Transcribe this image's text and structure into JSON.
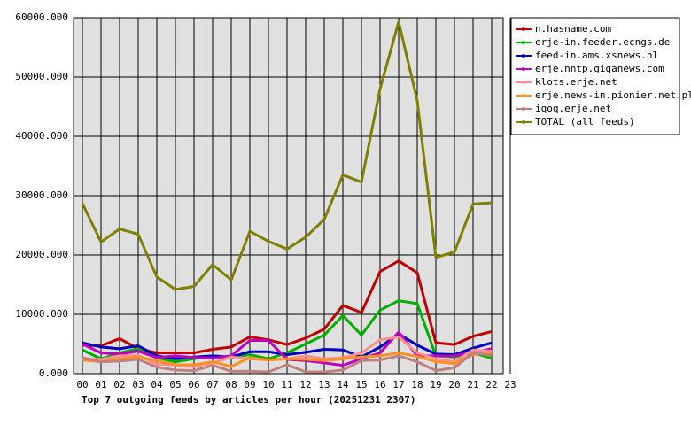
{
  "chart_data": {
    "type": "line",
    "title": "Top 7 outgoing feeds by articles per hour (20251231 2307)",
    "categories": [
      "00",
      "01",
      "02",
      "03",
      "04",
      "05",
      "06",
      "07",
      "08",
      "09",
      "10",
      "11",
      "12",
      "13",
      "14",
      "15",
      "16",
      "17",
      "18",
      "19",
      "20",
      "21",
      "22",
      "23"
    ],
    "ylim": [
      0,
      60000
    ],
    "yticks": [
      {
        "value": 0,
        "label": "0.000"
      },
      {
        "value": 10000,
        "label": "10000.000"
      },
      {
        "value": 20000,
        "label": "20000.000"
      },
      {
        "value": 30000,
        "label": "30000.000"
      },
      {
        "value": 40000,
        "label": "40000.000"
      },
      {
        "value": 50000,
        "label": "50000.000"
      },
      {
        "value": 60000,
        "label": "60000.000"
      }
    ],
    "grid": true,
    "legend": "right",
    "series": [
      {
        "name": "n.hasname.com",
        "color": "#c00000",
        "values": [
          4800,
          4700,
          5900,
          4200,
          3500,
          3500,
          3500,
          4100,
          4500,
          6200,
          5700,
          4900,
          6000,
          7500,
          11500,
          10300,
          17200,
          19000,
          17000,
          5200,
          4900,
          6300,
          7100,
          null
        ]
      },
      {
        "name": "erje-in.feeder.ecngs.de",
        "color": "#00b000",
        "values": [
          4000,
          2500,
          3500,
          4200,
          2700,
          2000,
          2500,
          3000,
          2700,
          3200,
          2500,
          3500,
          5000,
          6500,
          9800,
          6500,
          10700,
          12300,
          11800,
          3000,
          2800,
          3500,
          2600,
          null
        ]
      },
      {
        "name": "feed-in.ams.xsnews.nl",
        "color": "#0000c0",
        "values": [
          5200,
          4500,
          4200,
          4700,
          3000,
          2500,
          2800,
          3000,
          2800,
          3700,
          3700,
          3200,
          3600,
          4100,
          4000,
          2800,
          4500,
          6700,
          4800,
          3300,
          3200,
          4300,
          5200,
          null
        ]
      },
      {
        "name": "erje.nntp.giganews.com",
        "color": "#c000c0",
        "values": [
          5000,
          3500,
          3300,
          3800,
          2700,
          3000,
          2700,
          2600,
          3000,
          5600,
          5600,
          2400,
          2200,
          1800,
          1400,
          2500,
          3500,
          7000,
          3000,
          3000,
          3000,
          3600,
          4200,
          null
        ]
      },
      {
        "name": "klots.erje.net",
        "color": "#ff9090",
        "values": [
          2500,
          2400,
          3000,
          3100,
          1600,
          1500,
          1200,
          1800,
          2800,
          2500,
          2300,
          2500,
          3000,
          2500,
          2700,
          3500,
          5700,
          6200,
          3500,
          2500,
          2000,
          4000,
          3800,
          null
        ]
      },
      {
        "name": "erje.news-in.pionier.net.pl",
        "color": "#ff9020",
        "values": [
          2300,
          2000,
          2500,
          2800,
          2200,
          1500,
          1500,
          2000,
          1200,
          2700,
          2300,
          2500,
          2400,
          2200,
          2500,
          2800,
          3000,
          3500,
          2900,
          2000,
          1700,
          3200,
          3500,
          null
        ]
      },
      {
        "name": "iqoq.erje.net",
        "color": "#c08080",
        "values": [
          2700,
          2000,
          2100,
          2400,
          1100,
          600,
          500,
          1400,
          400,
          400,
          300,
          1500,
          300,
          300,
          600,
          2200,
          2300,
          3000,
          2000,
          500,
          1000,
          3500,
          3100,
          null
        ]
      },
      {
        "name": "TOTAL (all feeds)",
        "color": "#808000",
        "values": [
          28700,
          22200,
          24400,
          23500,
          16300,
          14200,
          14700,
          18400,
          15800,
          24000,
          22300,
          21000,
          23000,
          26000,
          33500,
          32300,
          48000,
          59300,
          46000,
          19600,
          20500,
          28600,
          28800,
          null
        ]
      }
    ]
  }
}
